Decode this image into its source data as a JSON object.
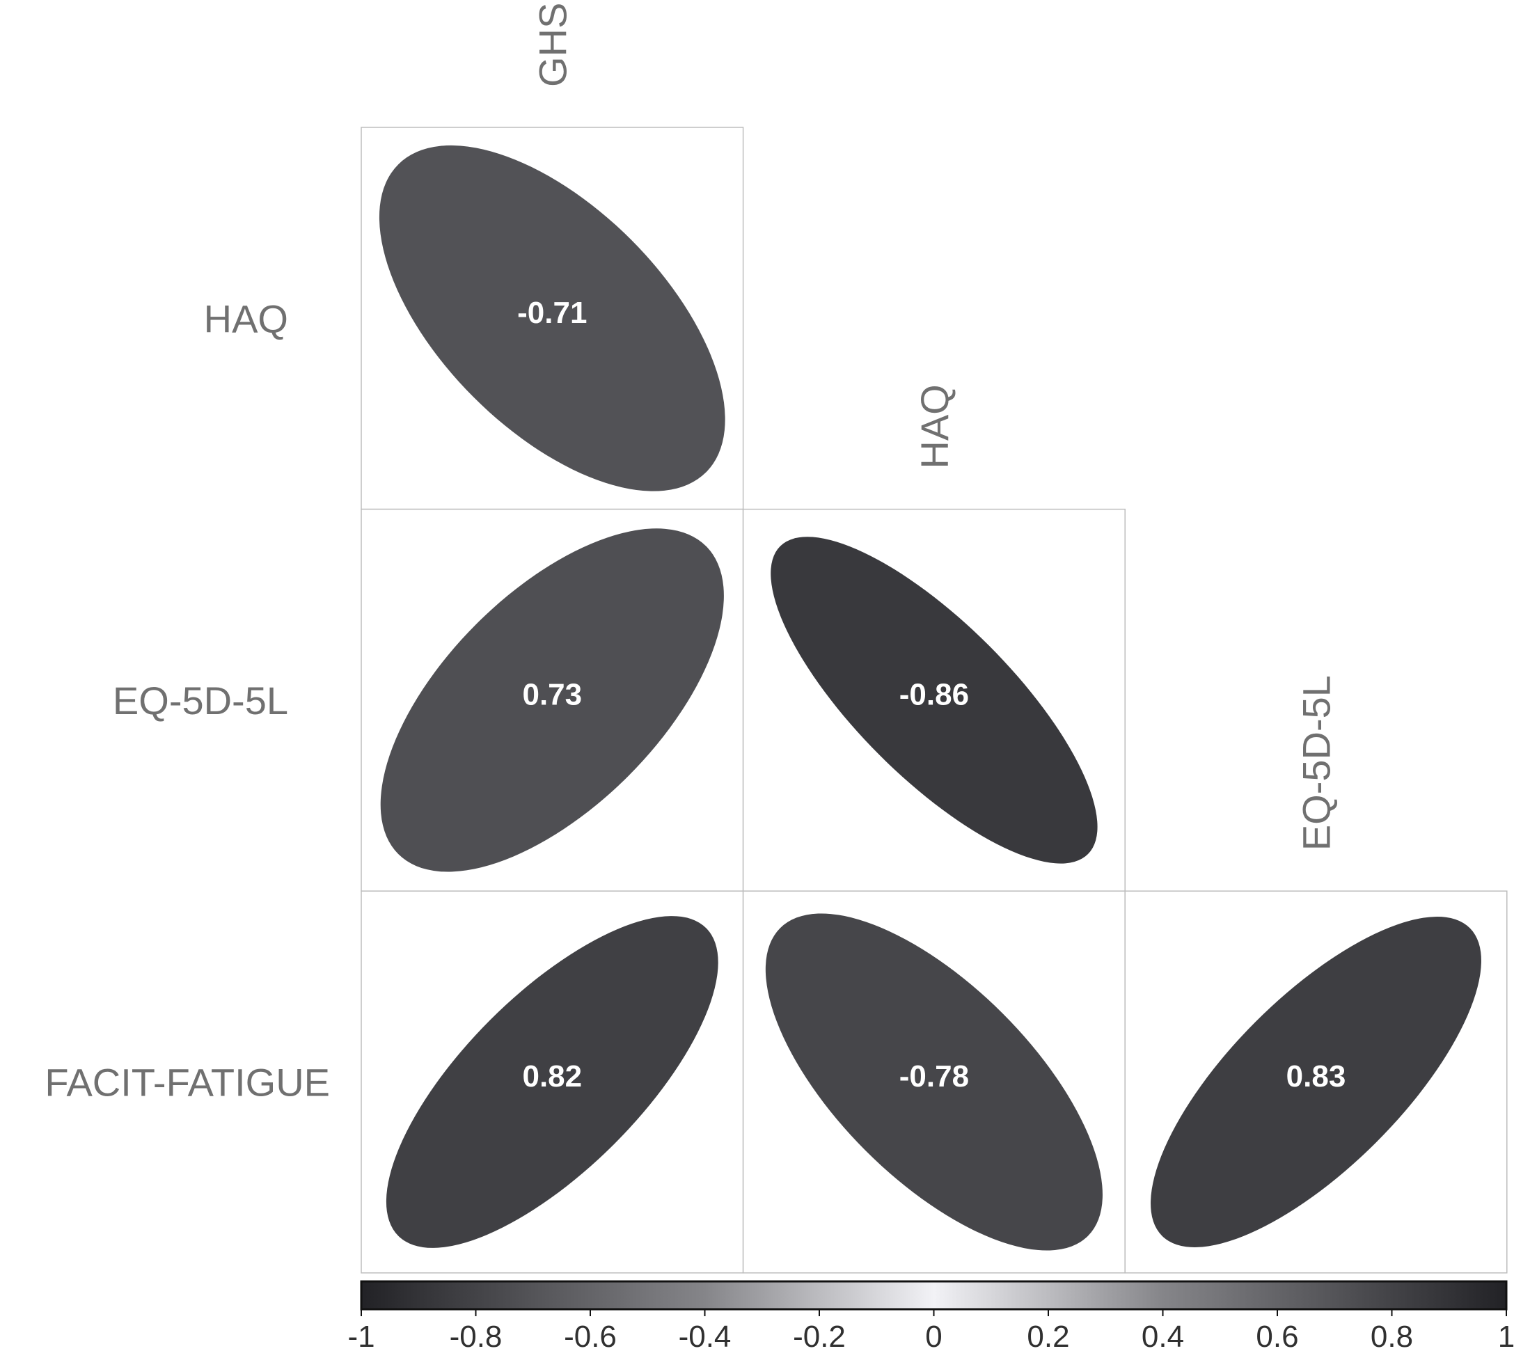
{
  "chart_data": {
    "type": "correlation-ellipse-matrix",
    "row_labels": [
      "HAQ",
      "EQ-5D-5L",
      "FACIT-FATIGUE"
    ],
    "col_labels": [
      "GHS",
      "HAQ",
      "EQ-5D-5L"
    ],
    "cells": [
      {
        "row": 0,
        "col": 0,
        "value": -0.71,
        "label": "-0.71"
      },
      {
        "row": 1,
        "col": 0,
        "value": 0.73,
        "label": "0.73"
      },
      {
        "row": 1,
        "col": 1,
        "value": -0.86,
        "label": "-0.86"
      },
      {
        "row": 2,
        "col": 0,
        "value": 0.82,
        "label": "0.82"
      },
      {
        "row": 2,
        "col": 1,
        "value": -0.78,
        "label": "-0.78"
      },
      {
        "row": 2,
        "col": 2,
        "value": 0.83,
        "label": "0.83"
      }
    ],
    "colorbar": {
      "range": [
        -1,
        1
      ],
      "ticks": [
        "-1",
        "-0.8",
        "-0.6",
        "-0.4",
        "-0.2",
        "0",
        "0.2",
        "0.4",
        "0.6",
        "0.8",
        "1"
      ],
      "colors": {
        "extreme": "#222222",
        "mid_low": "#858585",
        "center": "#f2f2f2"
      }
    },
    "colors": {
      "cell_border": "#bdbdbd",
      "label_text": "#707070",
      "value_text": "#ffffff"
    }
  }
}
